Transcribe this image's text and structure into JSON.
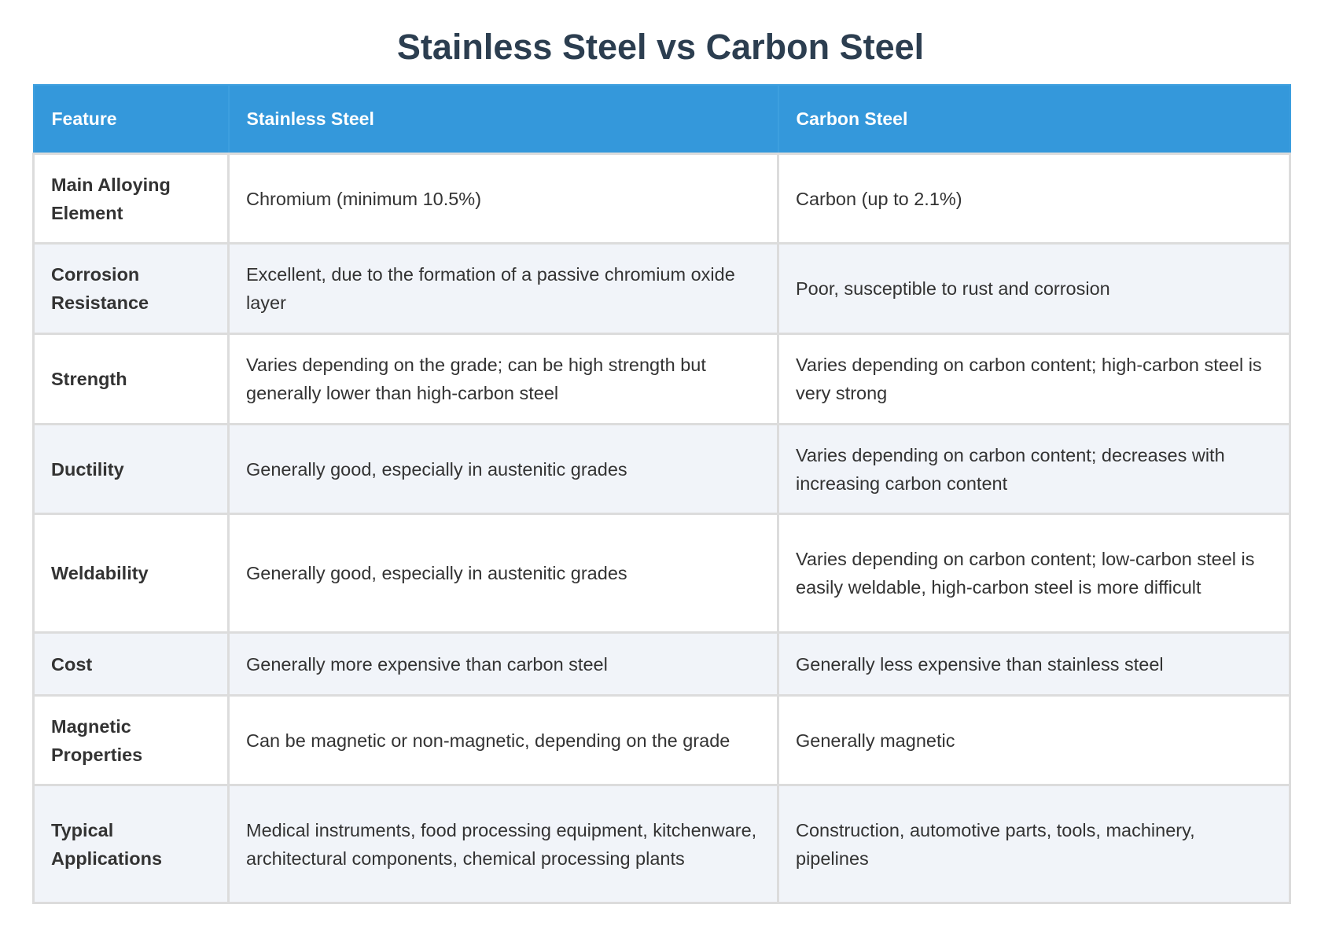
{
  "title": "Stainless Steel vs Carbon Steel",
  "table": {
    "headers": [
      "Feature",
      "Stainless Steel",
      "Carbon Steel"
    ],
    "rows": [
      [
        "Main Alloying Element",
        "Chromium (minimum 10.5%)",
        "Carbon (up to 2.1%)"
      ],
      [
        "Corrosion Resistance",
        "Excellent, due to the formation of a passive chromium oxide layer",
        "Poor, susceptible to rust and corrosion"
      ],
      [
        "Strength",
        "Varies depending on the grade; can be high strength but generally lower than high-carbon steel",
        "Varies depending on carbon content; high-carbon steel is very strong"
      ],
      [
        "Ductility",
        "Generally good, especially in austenitic grades",
        "Varies depending on carbon content; decreases with increasing carbon content"
      ],
      [
        "Weldability",
        "Generally good, especially in austenitic grades",
        "Varies depending on carbon content; low-carbon steel is easily weldable, high-carbon steel is more difficult"
      ],
      [
        "Cost",
        "Generally more expensive than carbon steel",
        "Generally less expensive than stainless steel"
      ],
      [
        "Magnetic Properties",
        "Can be magnetic or non-magnetic, depending on the grade",
        "Generally magnetic"
      ],
      [
        "Typical Applications",
        "Medical instruments, food processing equipment, kitchenware, architectural components, chemical processing plants",
        "Construction, automotive parts, tools, machinery, pipelines"
      ]
    ]
  }
}
